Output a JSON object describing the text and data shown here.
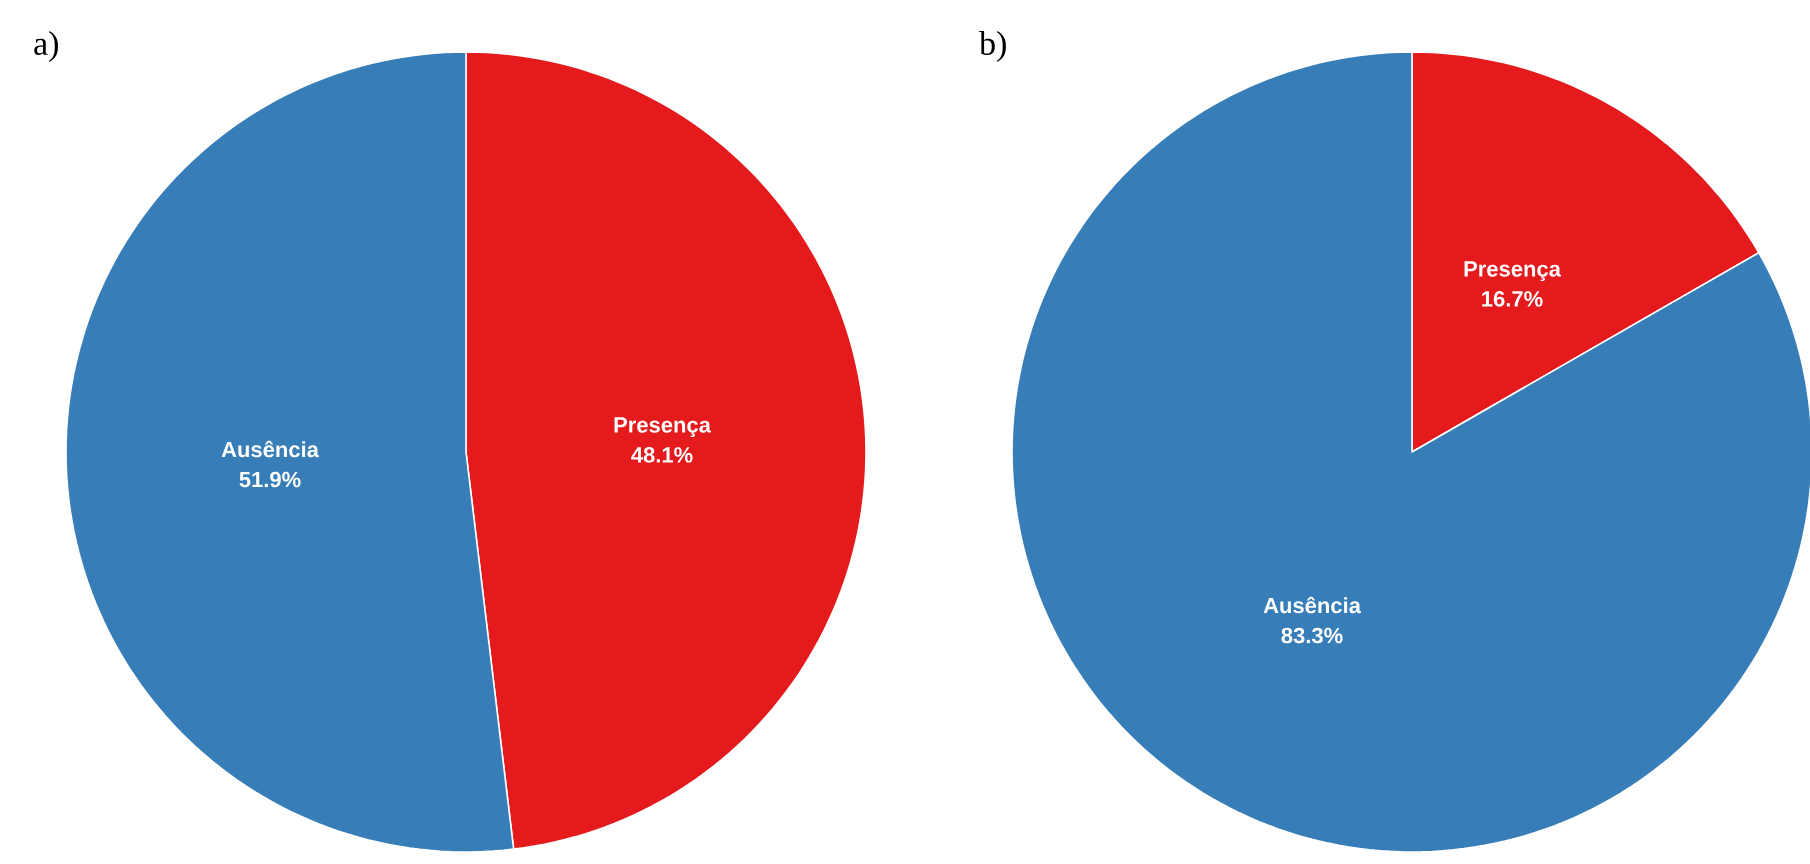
{
  "chart_data": [
    {
      "type": "pie",
      "title": "a)",
      "categories": [
        "Presença",
        "Ausência"
      ],
      "values": [
        48.1,
        51.9
      ],
      "colors": [
        "#e41a1c",
        "#377eb8"
      ],
      "value_labels": [
        "48.1%",
        "51.9%"
      ]
    },
    {
      "type": "pie",
      "title": "b)",
      "categories": [
        "Presença",
        "Ausência"
      ],
      "values": [
        16.7,
        83.3
      ],
      "colors": [
        "#e41a1c",
        "#377eb8"
      ],
      "value_labels": [
        "16.7%",
        "83.3%"
      ]
    }
  ]
}
